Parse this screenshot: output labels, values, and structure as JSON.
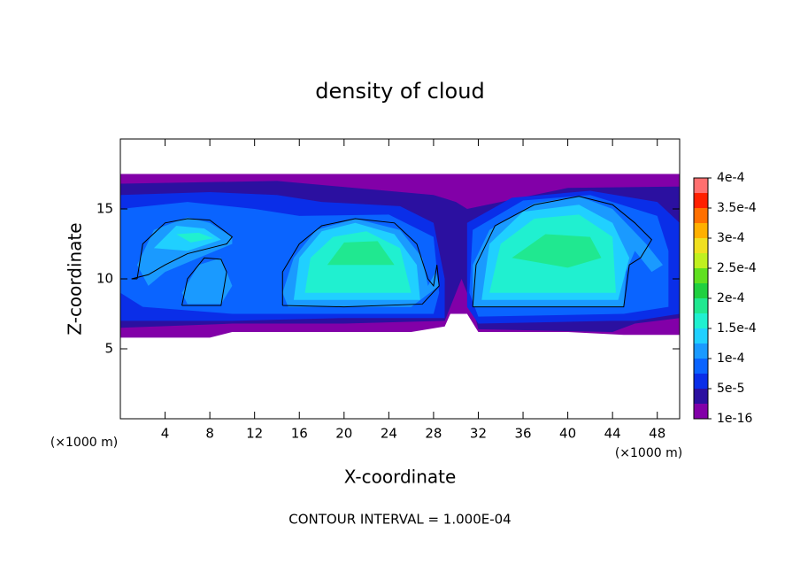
{
  "chart_data": {
    "type": "contour",
    "title": "density of cloud",
    "xlabel": "X-coordinate",
    "ylabel": "Z-coordinate",
    "unit_label": "(×1000 m)",
    "annotation": "CONTOUR INTERVAL = 1.000E-04",
    "xlim": [
      0,
      50
    ],
    "ylim": [
      0,
      20
    ],
    "xticks": [
      4,
      8,
      12,
      16,
      20,
      24,
      28,
      32,
      36,
      40,
      44,
      48
    ],
    "yticks": [
      5,
      10,
      15
    ],
    "levels": [
      1e-16,
      2.5e-05,
      5e-05,
      7.5e-05,
      0.0001,
      0.000125,
      0.00015,
      0.000175,
      0.0002,
      0.000225,
      0.00025,
      0.000275,
      0.0003,
      0.000325,
      0.00035,
      0.000375,
      0.0004
    ],
    "colors": [
      "#8200a8",
      "#2b10a0",
      "#0a2ee8",
      "#0a64ff",
      "#1a9aff",
      "#20d0ff",
      "#20f0d0",
      "#20e890",
      "#20d040",
      "#60e020",
      "#c0f020",
      "#f0e020",
      "#ffb000",
      "#ff7000",
      "#ff2000",
      "#ff7070"
    ],
    "colorbar_ticks": [
      {
        "value": 1e-16,
        "label": "1e-16"
      },
      {
        "value": 5e-05,
        "label": "5e-5"
      },
      {
        "value": 0.0001,
        "label": "1e-4"
      },
      {
        "value": 0.00015,
        "label": "1.5e-4"
      },
      {
        "value": 0.0002,
        "label": "2e-4"
      },
      {
        "value": 0.00025,
        "label": "2.5e-4"
      },
      {
        "value": 0.0003,
        "label": "3e-4"
      },
      {
        "value": 0.00035,
        "label": "3.5e-4"
      },
      {
        "value": 0.0004,
        "label": "4e-4"
      }
    ],
    "regions": [
      {
        "value": 1e-16,
        "x": [
          0,
          50,
          50,
          45,
          40,
          32,
          31,
          29.5,
          29,
          26,
          20,
          10,
          8,
          0
        ],
        "z": [
          17.5,
          17.5,
          6,
          6,
          6.2,
          6.2,
          7.5,
          7.5,
          6.6,
          6.2,
          6.2,
          6.2,
          5.8,
          5.8
        ]
      },
      {
        "value": 2.5e-05,
        "x": [
          0,
          14,
          28,
          30,
          31,
          40,
          50,
          50,
          46,
          44,
          32,
          31.5,
          30.5,
          29.5,
          29,
          20,
          10,
          0
        ],
        "z": [
          16.8,
          17,
          16,
          15.5,
          15,
          16.5,
          16.6,
          7.2,
          6.8,
          6.2,
          6.4,
          8,
          10,
          8,
          7,
          6.8,
          6.8,
          6.5
        ]
      },
      {
        "value": 5e-05,
        "x": [
          0,
          8,
          14,
          18,
          25,
          28,
          29,
          29,
          20,
          10,
          0
        ],
        "z": [
          16,
          16.2,
          16,
          15.5,
          15.2,
          14,
          10,
          7.2,
          7.2,
          7,
          7
        ]
      },
      {
        "value": 5e-05,
        "x": [
          31,
          35,
          42,
          48,
          50,
          50,
          46,
          44,
          32,
          31
        ],
        "z": [
          14,
          15.8,
          16.3,
          15.5,
          14,
          7.5,
          7,
          7,
          6.8,
          8
        ]
      },
      {
        "value": 7.5e-05,
        "x": [
          0,
          6,
          12,
          16,
          24,
          28,
          28.5,
          28,
          15,
          10,
          2,
          0
        ],
        "z": [
          15,
          15.5,
          15,
          14.5,
          14.6,
          13,
          9,
          7.5,
          7.5,
          7.5,
          8,
          9
        ]
      },
      {
        "value": 7.5e-05,
        "x": [
          31.5,
          36,
          42,
          48,
          49,
          49,
          45,
          32,
          31.2
        ],
        "z": [
          13.5,
          15.6,
          16,
          14.5,
          12,
          8,
          7.5,
          7.3,
          9
        ]
      },
      {
        "value": 0.0001,
        "x": [
          1.5,
          3,
          6,
          8,
          10,
          10,
          7,
          4,
          2.5
        ],
        "z": [
          11,
          13.5,
          14.4,
          14,
          13,
          12.5,
          11.5,
          10.5,
          9.5
        ]
      },
      {
        "value": 0.0001,
        "x": [
          5.5,
          7,
          9,
          10,
          9,
          6
        ],
        "z": [
          9,
          11,
          11.5,
          9.5,
          8.2,
          8.2
        ]
      },
      {
        "value": 0.0001,
        "x": [
          14.5,
          15.5,
          17.5,
          21,
          25,
          27,
          27.5,
          28.2,
          28.5,
          26,
          20,
          15
        ],
        "z": [
          9,
          11.5,
          13.5,
          14.3,
          13.5,
          11.5,
          9.5,
          10.5,
          9.5,
          8,
          8,
          8
        ]
      },
      {
        "value": 0.0001,
        "x": [
          31.5,
          31.5,
          33,
          37,
          41,
          44,
          47,
          48.5,
          47.5,
          46,
          45.2,
          45,
          40,
          32
        ],
        "z": [
          8,
          11,
          13.5,
          15.4,
          15.9,
          15,
          12.5,
          11,
          10.5,
          12,
          10.5,
          8,
          8,
          8
        ]
      },
      {
        "value": 0.000125,
        "x": [
          15.5,
          16,
          18,
          21,
          24.5,
          26.5,
          26.8
        ],
        "z": [
          8.5,
          11.5,
          13.4,
          14,
          13.2,
          11,
          8.5
        ]
      },
      {
        "value": 0.000125,
        "x": [
          32.3,
          33,
          36,
          41,
          44,
          45.5,
          44.5
        ],
        "z": [
          8.5,
          12.5,
          14.8,
          15.3,
          14,
          11.5,
          8.5
        ]
      },
      {
        "value": 0.000125,
        "x": [
          3,
          5,
          7.5,
          9,
          6
        ],
        "z": [
          12.2,
          13.8,
          13.6,
          12.8,
          12
        ]
      },
      {
        "value": 0.00015,
        "x": [
          16.5,
          17,
          19,
          22,
          25,
          26
        ],
        "z": [
          9,
          11.5,
          13,
          13.4,
          12.2,
          9
        ]
      },
      {
        "value": 0.00015,
        "x": [
          33,
          34,
          37,
          41,
          44,
          44.3
        ],
        "z": [
          9,
          12.5,
          14.3,
          14.6,
          13,
          9
        ]
      },
      {
        "value": 0.00015,
        "x": [
          5,
          7,
          8.3,
          6.3
        ],
        "z": [
          13.2,
          13.3,
          12.9,
          12.6
        ]
      },
      {
        "value": 0.000175,
        "x": [
          18.5,
          20,
          23,
          24.5
        ],
        "z": [
          11,
          12.6,
          12.7,
          11
        ]
      },
      {
        "value": 0.000175,
        "x": [
          35,
          38,
          42,
          43,
          40
        ],
        "z": [
          11.5,
          13.2,
          13,
          11.5,
          10.8
        ]
      }
    ],
    "contour_lines": [
      {
        "value": 0.0001,
        "x": [
          1.5,
          2,
          4,
          6,
          8,
          10,
          9.5,
          6,
          4,
          2.5,
          1,
          1.5
        ],
        "z": [
          10,
          12.5,
          14,
          14.3,
          14.2,
          13,
          12.5,
          11.8,
          11,
          10.3,
          10,
          10
        ]
      },
      {
        "value": 0.0001,
        "x": [
          5.5,
          6,
          7.5,
          9,
          9.5,
          9,
          5.5
        ],
        "z": [
          8.1,
          10,
          11.5,
          11.4,
          10.5,
          8.1,
          8.1
        ]
      },
      {
        "value": 0.0001,
        "x": [
          14.5,
          14.5,
          16,
          18,
          21,
          24.5,
          26.5,
          27.5,
          28,
          28.3,
          28.5,
          27,
          20,
          14.5
        ],
        "z": [
          8.1,
          10.5,
          12.5,
          13.8,
          14.3,
          14,
          12.5,
          10,
          9.5,
          11,
          9.5,
          8.2,
          8,
          8.1
        ]
      },
      {
        "value": 0.0001,
        "x": [
          31.5,
          31.8,
          33.5,
          37,
          41,
          44,
          46,
          47.5,
          46.5,
          45.5,
          45,
          38,
          31.5
        ],
        "z": [
          8,
          11,
          13.8,
          15.3,
          15.9,
          15.3,
          14,
          12.8,
          11.5,
          11,
          8,
          8,
          8
        ]
      }
    ]
  }
}
